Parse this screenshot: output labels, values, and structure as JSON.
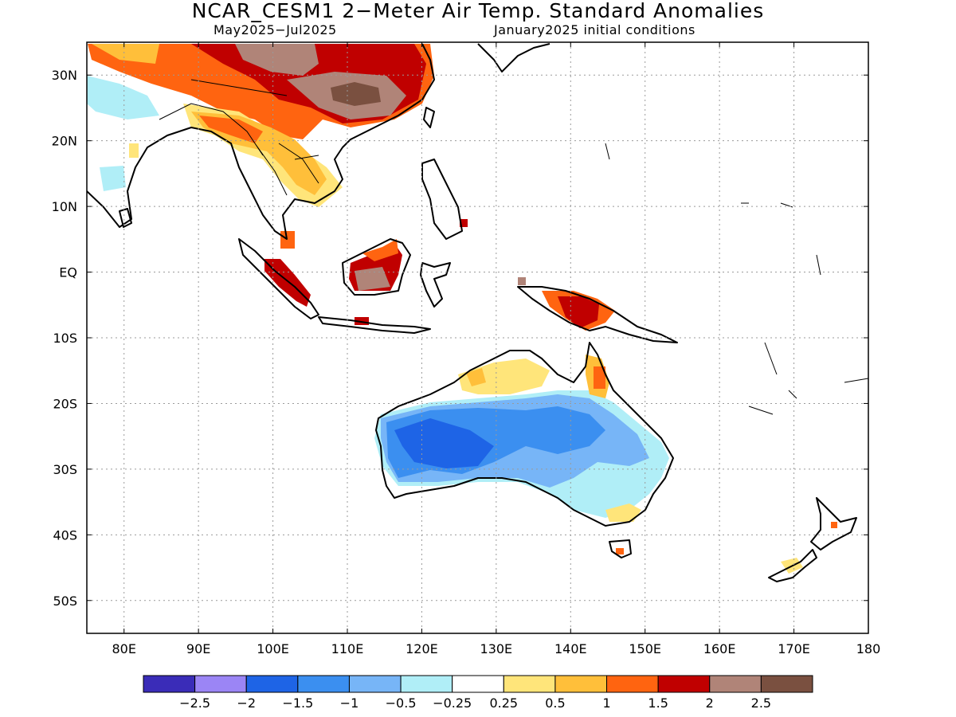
{
  "header": {
    "title": "NCAR_CESM1 2−Meter Air Temp. Standard Anomalies",
    "period": "May2025−Jul2025",
    "init": "January2025 initial conditions"
  },
  "map": {
    "lon_range": [
      75,
      180
    ],
    "lat_range": [
      -55,
      35
    ],
    "lat_ticks": [
      {
        "value": 30,
        "label": "30N"
      },
      {
        "value": 20,
        "label": "20N"
      },
      {
        "value": 10,
        "label": "10N"
      },
      {
        "value": 0,
        "label": "EQ"
      },
      {
        "value": -10,
        "label": "10S"
      },
      {
        "value": -20,
        "label": "20S"
      },
      {
        "value": -30,
        "label": "30S"
      },
      {
        "value": -40,
        "label": "40S"
      },
      {
        "value": -50,
        "label": "50S"
      }
    ],
    "lon_ticks": [
      {
        "value": 80,
        "label": "80E"
      },
      {
        "value": 90,
        "label": "90E"
      },
      {
        "value": 100,
        "label": "100E"
      },
      {
        "value": 110,
        "label": "110E"
      },
      {
        "value": 120,
        "label": "120E"
      },
      {
        "value": 130,
        "label": "130E"
      },
      {
        "value": 140,
        "label": "140E"
      },
      {
        "value": 150,
        "label": "150E"
      },
      {
        "value": 160,
        "label": "160E"
      },
      {
        "value": 170,
        "label": "170E"
      },
      {
        "value": 180,
        "label": "180"
      }
    ],
    "grid": true
  },
  "colorbar": {
    "colors": [
      "#3a2cb8",
      "#9b85f5",
      "#1e64e6",
      "#3b8ff0",
      "#77b5f7",
      "#b0eef7",
      "#ffffff",
      "#ffe57a",
      "#ffbf3a",
      "#ff6410",
      "#c00000",
      "#b08478",
      "#7a5040"
    ],
    "labels": [
      "−2.5",
      "−2",
      "−1.5",
      "−1",
      "−0.5",
      "−0.25",
      "0.25",
      "0.5",
      "1",
      "1.5",
      "2",
      "2.5"
    ]
  },
  "chart_data": {
    "type": "heatmap",
    "title": "NCAR_CESM1 2−Meter Air Temp. Standard Anomalies",
    "x_range": [
      75,
      180
    ],
    "y_range": [
      -55,
      35
    ],
    "levels": [
      -2.5,
      -2,
      -1.5,
      -1,
      -0.5,
      -0.25,
      0.25,
      0.5,
      1,
      1.5,
      2,
      2.5
    ],
    "regions": [
      {
        "name": "",
        "level": "cool",
        "value": -1.5,
        "lon": [
          120,
          132
        ],
        "lat": [
          -31,
          -23
        ]
      },
      {
        "name": "",
        "level": "cool",
        "value": -1.0,
        "lon": [
          116,
          147
        ],
        "lat": [
          -34,
          -21
        ]
      },
      {
        "name": "",
        "level": "warm",
        "value": 1.5,
        "lon": [
          88,
          115
        ],
        "lat": [
          18,
          35
        ]
      },
      {
        "name": "",
        "level": "warm",
        "value": 2.5,
        "lon": [
          109,
          113
        ],
        "lat": [
          26,
          30
        ]
      },
      {
        "name": "",
        "level": "warm",
        "value": 2.0,
        "lon": [
          139,
          145
        ],
        "lat": [
          -8,
          -4
        ]
      }
    ]
  }
}
